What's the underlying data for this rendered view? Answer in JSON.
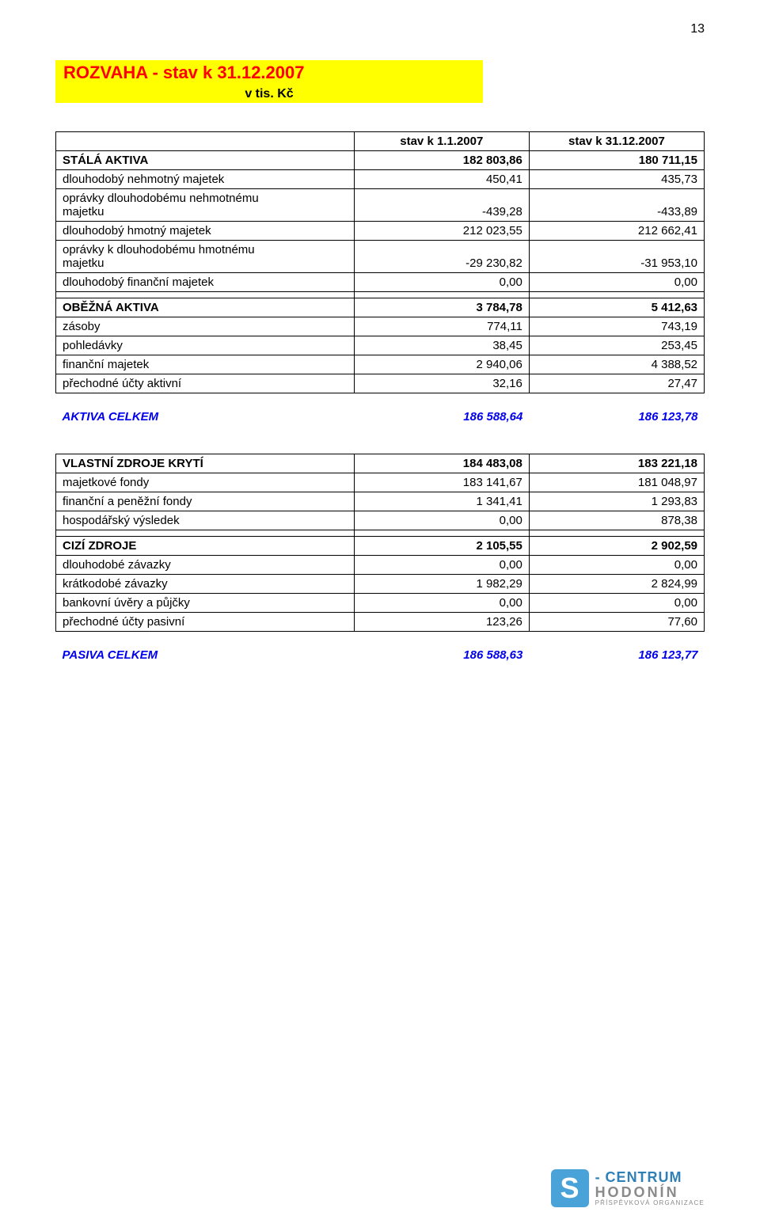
{
  "page_number": "13",
  "title": "ROZVAHA - stav k 31.12.2007",
  "subtitle": "v tis. Kč",
  "title_bg": "#ffff00",
  "title_color": "#ff0000",
  "headers": {
    "col1": "stav k 1.1.2007",
    "col2": "stav k 31.12.2007"
  },
  "section_a": {
    "fixed_assets": {
      "label": "STÁLÁ AKTIVA",
      "v1": "182 803,86",
      "v2": "180 711,15"
    },
    "rows": [
      {
        "label": "dlouhodobý nehmotný majetek",
        "v1": "450,41",
        "v2": "435,73"
      },
      {
        "label": "oprávky dlouhodobému nehmotnému majetku",
        "v1": "-439,28",
        "v2": "-433,89",
        "multiline": true,
        "label_line1": "oprávky dlouhodobému nehmotnému",
        "label_line2": "majetku"
      },
      {
        "label": "dlouhodobý hmotný  majetek",
        "v1": "212 023,55",
        "v2": "212 662,41"
      },
      {
        "label": "oprávky k dlouhodobému hmotnému majetku",
        "v1": "-29 230,82",
        "v2": "-31 953,10",
        "multiline": true,
        "label_line1": "oprávky k dlouhodobému hmotnému",
        "label_line2": "majetku"
      },
      {
        "label": "dlouhodobý finanční majetek",
        "v1": "0,00",
        "v2": "0,00"
      }
    ]
  },
  "section_b": {
    "current_assets": {
      "label": "OBĚŽNÁ AKTIVA",
      "v1": "3 784,78",
      "v2": "5 412,63"
    },
    "rows": [
      {
        "label": "zásoby",
        "v1": "774,11",
        "v2": "743,19"
      },
      {
        "label": "pohledávky",
        "v1": "38,45",
        "v2": "253,45"
      },
      {
        "label": "finanční majetek",
        "v1": "2 940,06",
        "v2": "4 388,52"
      },
      {
        "label": "přechodné účty aktivní",
        "v1": "32,16",
        "v2": "27,47"
      }
    ]
  },
  "assets_total": {
    "label": "AKTIVA CELKEM",
    "v1": "186 588,64",
    "v2": "186 123,78"
  },
  "section_c": {
    "equity": {
      "label": "VLASTNÍ ZDROJE KRYTÍ",
      "v1": "184 483,08",
      "v2": "183 221,18"
    },
    "rows": [
      {
        "label": "majetkové fondy",
        "v1": "183 141,67",
        "v2": "181 048,97"
      },
      {
        "label": "finanční a peněžní fondy",
        "v1": "1 341,41",
        "v2": "1 293,83"
      },
      {
        "label": "hospodářský výsledek",
        "v1": "0,00",
        "v2": "878,38"
      }
    ]
  },
  "section_d": {
    "liab": {
      "label": "CIZÍ ZDROJE",
      "v1": "2 105,55",
      "v2": "2 902,59"
    },
    "rows": [
      {
        "label": "dlouhodobé závazky",
        "v1": "0,00",
        "v2": "0,00"
      },
      {
        "label": "krátkodobé závazky",
        "v1": "1 982,29",
        "v2": "2 824,99"
      },
      {
        "label": "bankovní úvěry a půjčky",
        "v1": "0,00",
        "v2": "0,00"
      },
      {
        "label": "přechodné účty pasivní",
        "v1": "123,26",
        "v2": "77,60"
      }
    ]
  },
  "liab_total": {
    "label": "PASIVA CELKEM",
    "v1": "186 588,63",
    "v2": "186 123,77"
  },
  "footer": {
    "s": "S",
    "centrum": "- CENTRUM",
    "hodonin": "HODONÍN",
    "sub": "PŘÍSPĚVKOVÁ ORGANIZACE"
  },
  "colors": {
    "blue_text": "#0000ee",
    "border": "#000000",
    "logo_blue": "#4aa3d8",
    "logo_text_blue": "#2f80b7",
    "logo_gray": "#8a8a8a"
  }
}
